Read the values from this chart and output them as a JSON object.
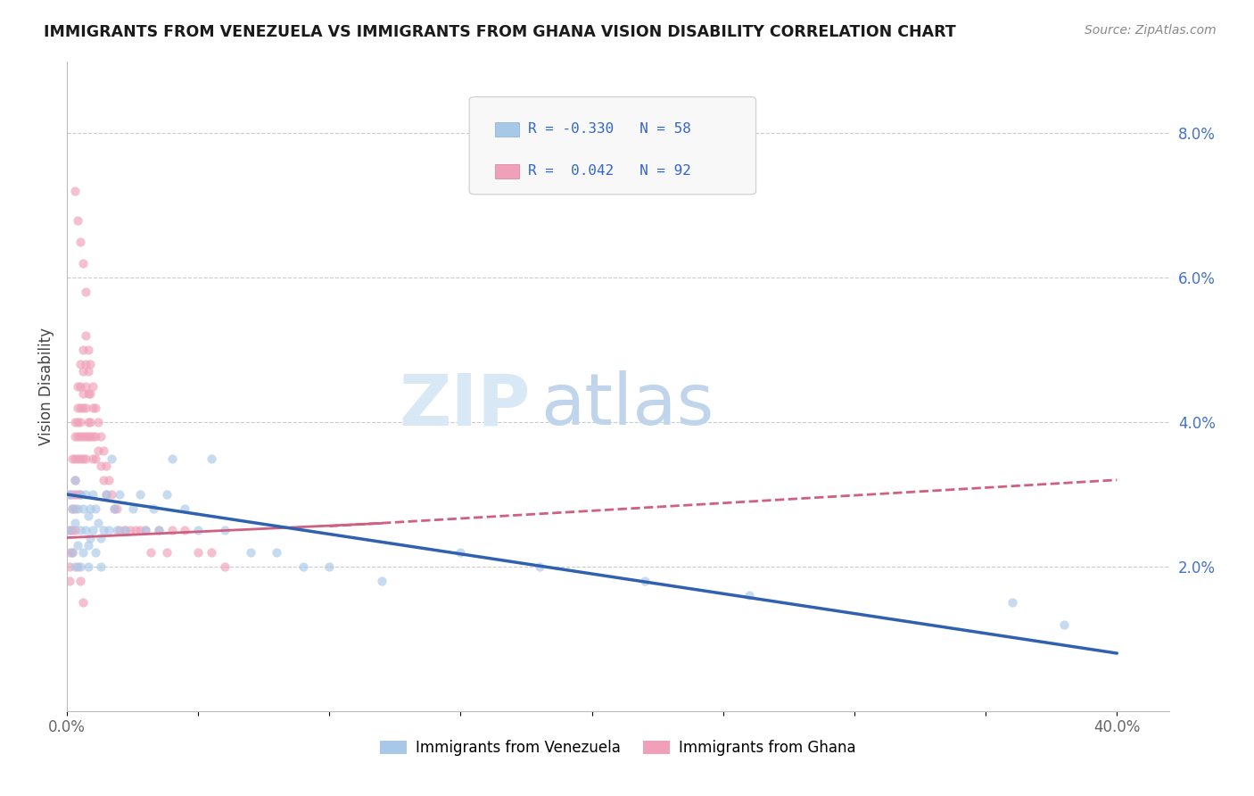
{
  "title": "IMMIGRANTS FROM VENEZUELA VS IMMIGRANTS FROM GHANA VISION DISABILITY CORRELATION CHART",
  "source": "Source: ZipAtlas.com",
  "ylabel": "Vision Disability",
  "xlim": [
    0.0,
    0.42
  ],
  "ylim": [
    0.0,
    0.09
  ],
  "color_venezuela": "#A8C8E8",
  "color_ghana": "#F0A0B8",
  "color_ven_line": "#3060B0",
  "color_gha_line": "#D06080",
  "scatter_alpha": 0.65,
  "scatter_size": 55,
  "venezuela_scatter_x": [
    0.001,
    0.001,
    0.002,
    0.002,
    0.003,
    0.003,
    0.003,
    0.004,
    0.004,
    0.005,
    0.005,
    0.005,
    0.006,
    0.006,
    0.007,
    0.007,
    0.008,
    0.008,
    0.008,
    0.009,
    0.009,
    0.01,
    0.01,
    0.011,
    0.011,
    0.012,
    0.013,
    0.013,
    0.014,
    0.015,
    0.016,
    0.017,
    0.018,
    0.019,
    0.02,
    0.022,
    0.025,
    0.028,
    0.03,
    0.033,
    0.035,
    0.038,
    0.04,
    0.045,
    0.05,
    0.055,
    0.06,
    0.07,
    0.08,
    0.09,
    0.1,
    0.12,
    0.15,
    0.18,
    0.22,
    0.26,
    0.36,
    0.38
  ],
  "venezuela_scatter_y": [
    0.03,
    0.025,
    0.028,
    0.022,
    0.032,
    0.026,
    0.02,
    0.028,
    0.023,
    0.03,
    0.025,
    0.02,
    0.028,
    0.022,
    0.03,
    0.025,
    0.027,
    0.023,
    0.02,
    0.028,
    0.024,
    0.03,
    0.025,
    0.028,
    0.022,
    0.026,
    0.024,
    0.02,
    0.025,
    0.03,
    0.025,
    0.035,
    0.028,
    0.025,
    0.03,
    0.025,
    0.028,
    0.03,
    0.025,
    0.028,
    0.025,
    0.03,
    0.035,
    0.028,
    0.025,
    0.035,
    0.025,
    0.022,
    0.022,
    0.02,
    0.02,
    0.018,
    0.022,
    0.02,
    0.018,
    0.016,
    0.015,
    0.012
  ],
  "ghana_scatter_x": [
    0.001,
    0.001,
    0.001,
    0.001,
    0.001,
    0.002,
    0.002,
    0.002,
    0.002,
    0.002,
    0.003,
    0.003,
    0.003,
    0.003,
    0.003,
    0.003,
    0.004,
    0.004,
    0.004,
    0.004,
    0.004,
    0.004,
    0.005,
    0.005,
    0.005,
    0.005,
    0.005,
    0.005,
    0.005,
    0.006,
    0.006,
    0.006,
    0.006,
    0.006,
    0.006,
    0.007,
    0.007,
    0.007,
    0.007,
    0.007,
    0.007,
    0.008,
    0.008,
    0.008,
    0.008,
    0.008,
    0.009,
    0.009,
    0.009,
    0.009,
    0.01,
    0.01,
    0.01,
    0.01,
    0.011,
    0.011,
    0.011,
    0.012,
    0.012,
    0.013,
    0.013,
    0.014,
    0.014,
    0.015,
    0.015,
    0.016,
    0.017,
    0.018,
    0.019,
    0.02,
    0.022,
    0.024,
    0.026,
    0.028,
    0.03,
    0.032,
    0.035,
    0.038,
    0.04,
    0.045,
    0.05,
    0.055,
    0.06,
    0.003,
    0.004,
    0.005,
    0.006,
    0.007,
    0.003,
    0.004,
    0.005,
    0.006
  ],
  "ghana_scatter_y": [
    0.03,
    0.025,
    0.022,
    0.02,
    0.018,
    0.035,
    0.03,
    0.028,
    0.025,
    0.022,
    0.04,
    0.038,
    0.035,
    0.032,
    0.03,
    0.028,
    0.045,
    0.042,
    0.04,
    0.038,
    0.035,
    0.03,
    0.048,
    0.045,
    0.042,
    0.04,
    0.038,
    0.035,
    0.03,
    0.05,
    0.047,
    0.044,
    0.042,
    0.038,
    0.035,
    0.052,
    0.048,
    0.045,
    0.042,
    0.038,
    0.035,
    0.05,
    0.047,
    0.044,
    0.04,
    0.038,
    0.048,
    0.044,
    0.04,
    0.038,
    0.045,
    0.042,
    0.038,
    0.035,
    0.042,
    0.038,
    0.035,
    0.04,
    0.036,
    0.038,
    0.034,
    0.036,
    0.032,
    0.034,
    0.03,
    0.032,
    0.03,
    0.028,
    0.028,
    0.025,
    0.025,
    0.025,
    0.025,
    0.025,
    0.025,
    0.022,
    0.025,
    0.022,
    0.025,
    0.025,
    0.022,
    0.022,
    0.02,
    0.072,
    0.068,
    0.065,
    0.062,
    0.058,
    0.025,
    0.02,
    0.018,
    0.015
  ],
  "ven_trend_x0": 0.0,
  "ven_trend_y0": 0.03,
  "ven_trend_x1": 0.4,
  "ven_trend_y1": 0.008,
  "gha_trend_x0": 0.0,
  "gha_trend_y0": 0.024,
  "gha_trend_x1": 0.4,
  "gha_trend_y1": 0.032
}
